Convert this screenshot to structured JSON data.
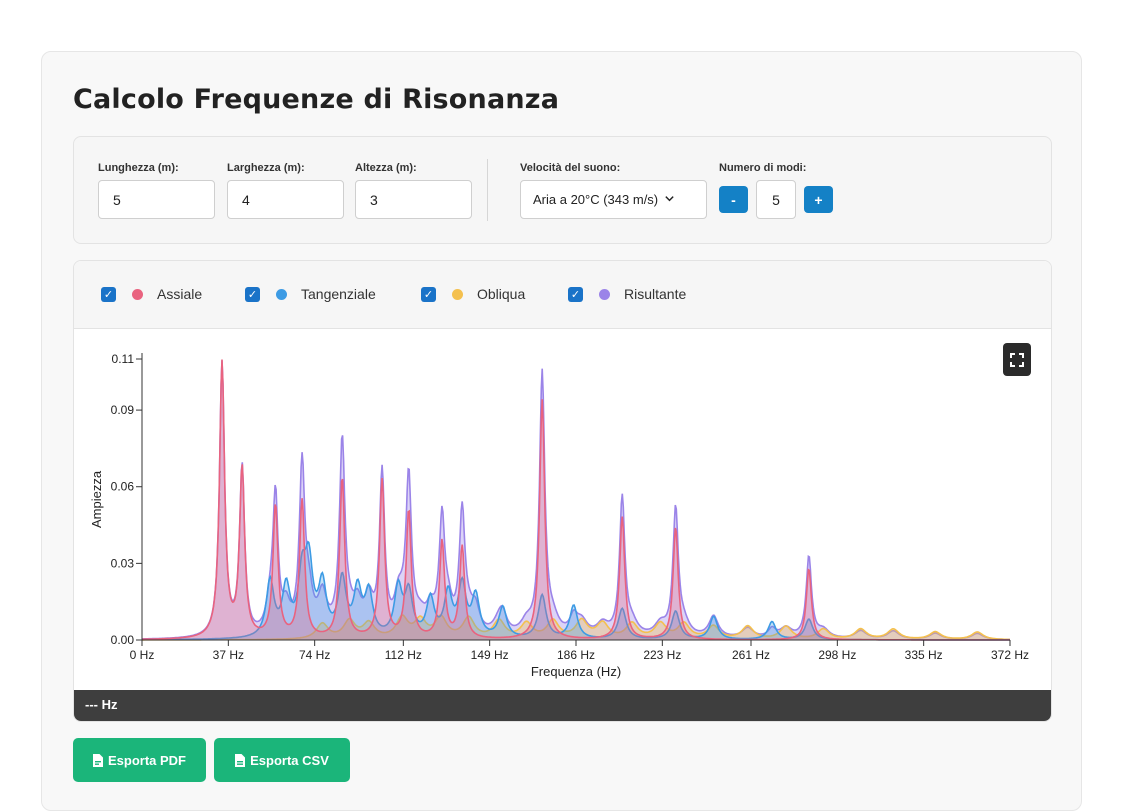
{
  "page": {
    "title": "Calcolo Frequenze di Risonanza"
  },
  "controls": {
    "length": {
      "label": "Lunghezza (m):",
      "value": "5"
    },
    "width": {
      "label": "Larghezza (m):",
      "value": "4"
    },
    "height": {
      "label": "Altezza (m):",
      "value": "3"
    },
    "sound_speed": {
      "label": "Velocità del suono:",
      "selected": "Aria a 20°C (343 m/s)"
    },
    "modes": {
      "label": "Numero di modi:",
      "value": "5",
      "minus": "-",
      "plus": "+"
    }
  },
  "legend": {
    "items": [
      {
        "label": "Assiale",
        "color": "#e9637f",
        "checked": true
      },
      {
        "label": "Tangenziale",
        "color": "#3d9be4",
        "checked": true
      },
      {
        "label": "Obliqua",
        "color": "#f4c04e",
        "checked": true
      },
      {
        "label": "Risultante",
        "color": "#9b84e8",
        "checked": true
      }
    ]
  },
  "chart_data": {
    "type": "area",
    "xlabel": "Frequenza (Hz)",
    "ylabel": "Ampiezza",
    "xlim": [
      0,
      372
    ],
    "ylim": [
      0,
      0.11
    ],
    "x_ticks": [
      "0 Hz",
      "37 Hz",
      "74 Hz",
      "112 Hz",
      "149 Hz",
      "186 Hz",
      "223 Hz",
      "261 Hz",
      "298 Hz",
      "335 Hz",
      "372 Hz"
    ],
    "x_tick_values": [
      0,
      37,
      74,
      112,
      149,
      186,
      223,
      261,
      298,
      335,
      372
    ],
    "y_ticks": [
      "0.00",
      "0.03",
      "0.06",
      "0.09",
      "0.11"
    ],
    "y_tick_values": [
      0,
      0.03,
      0.06,
      0.09,
      0.11
    ],
    "series": [
      {
        "name": "Assiale",
        "color": "#e9637f",
        "peaks": [
          [
            34.3,
            0.108
          ],
          [
            42.9,
            0.066
          ],
          [
            57.2,
            0.052
          ],
          [
            68.6,
            0.054
          ],
          [
            85.8,
            0.063
          ],
          [
            102.9,
            0.062
          ],
          [
            114.3,
            0.05
          ],
          [
            128.6,
            0.038
          ],
          [
            137.2,
            0.036
          ],
          [
            171.5,
            0.094
          ],
          [
            205.8,
            0.048
          ],
          [
            228.7,
            0.044
          ],
          [
            285.8,
            0.028
          ]
        ]
      },
      {
        "name": "Tangenziale",
        "color": "#3d9be4",
        "peaks": [
          [
            54.9,
            0.022
          ],
          [
            61.8,
            0.019
          ],
          [
            68.6,
            0.022
          ],
          [
            71.5,
            0.027
          ],
          [
            77.3,
            0.02
          ],
          [
            85.8,
            0.022
          ],
          [
            92.4,
            0.018
          ],
          [
            97.2,
            0.017
          ],
          [
            109.8,
            0.019
          ],
          [
            114.3,
            0.017
          ],
          [
            123.6,
            0.015
          ],
          [
            131.2,
            0.017
          ],
          [
            137.2,
            0.02
          ],
          [
            143.0,
            0.016
          ],
          [
            154.6,
            0.012
          ],
          [
            171.5,
            0.017
          ],
          [
            185.0,
            0.013
          ],
          [
            205.8,
            0.012
          ],
          [
            228.7,
            0.011
          ],
          [
            245.0,
            0.009
          ],
          [
            270.0,
            0.007
          ],
          [
            285.8,
            0.008
          ]
        ]
      },
      {
        "name": "Obliqua",
        "color": "#f4c04e",
        "peaks": [
          [
            77.3,
            0.006
          ],
          [
            88.9,
            0.007
          ],
          [
            97.2,
            0.006
          ],
          [
            111.5,
            0.008
          ],
          [
            119.3,
            0.007
          ],
          [
            128.1,
            0.008
          ],
          [
            140.0,
            0.008
          ],
          [
            153.0,
            0.007
          ],
          [
            164.8,
            0.006
          ],
          [
            176.1,
            0.007
          ],
          [
            188.4,
            0.007
          ],
          [
            197.4,
            0.006
          ],
          [
            210.0,
            0.006
          ],
          [
            222.2,
            0.006
          ],
          [
            232.2,
            0.006
          ],
          [
            244.9,
            0.005
          ],
          [
            259.6,
            0.005
          ],
          [
            276.0,
            0.005
          ],
          [
            292.0,
            0.004
          ],
          [
            308.0,
            0.004
          ],
          [
            322.0,
            0.004
          ],
          [
            340.0,
            0.003
          ],
          [
            358.0,
            0.003
          ]
        ]
      },
      {
        "name": "Risultante",
        "color": "#9b84e8"
      }
    ],
    "grid": false,
    "legend_position": "top"
  },
  "status": {
    "frequency_readout": "--- Hz"
  },
  "actions": {
    "export_pdf": "Esporta PDF",
    "export_csv": "Esporta CSV"
  },
  "icons": {
    "fullscreen": "fullscreen-icon",
    "pdf": "file-pdf-icon",
    "csv": "file-csv-icon",
    "check": "check-icon",
    "chevron": "chevron-down-icon"
  }
}
